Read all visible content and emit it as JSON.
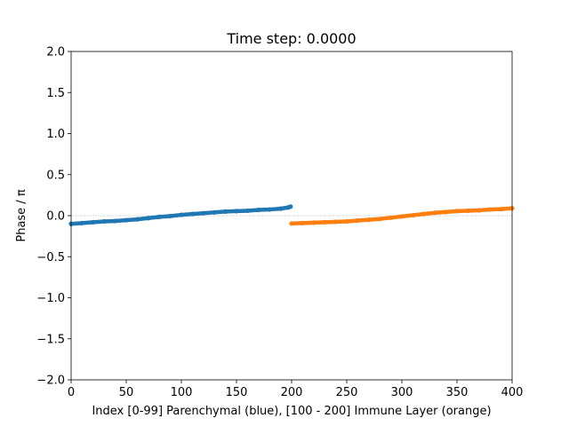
{
  "chart_data": {
    "type": "scatter",
    "title": "Time step: 0.0000",
    "xlabel": "Index [0-99] Parenchymal (blue), [100 - 200] Immune Layer (orange)",
    "ylabel": "Phase / π",
    "xlim": [
      0,
      400
    ],
    "ylim": [
      -2.0,
      2.0
    ],
    "xticks": [
      0,
      50,
      100,
      150,
      200,
      250,
      300,
      350,
      400
    ],
    "xtick_labels": [
      "0",
      "50",
      "100",
      "150",
      "200",
      "250",
      "300",
      "350",
      "400"
    ],
    "yticks": [
      2.0,
      1.5,
      1.0,
      0.5,
      0.0,
      -0.5,
      -1.0,
      -1.5,
      -2.0
    ],
    "ytick_labels": [
      "2.0",
      "1.5",
      "1.0",
      "0.5",
      "0.0",
      "−0.5",
      "−1.0",
      "−1.5",
      "−2.0"
    ],
    "reference_line": {
      "y": 0.0,
      "style": "dotted",
      "color": "#808080"
    },
    "grid": false,
    "series": [
      {
        "color": "#1f77b4",
        "points": [
          [
            0,
            -0.1
          ],
          [
            10,
            -0.09
          ],
          [
            20,
            -0.08
          ],
          [
            30,
            -0.07
          ],
          [
            40,
            -0.065
          ],
          [
            50,
            -0.055
          ],
          [
            60,
            -0.045
          ],
          [
            70,
            -0.03
          ],
          [
            80,
            -0.015
          ],
          [
            90,
            -0.005
          ],
          [
            100,
            0.01
          ],
          [
            110,
            0.02
          ],
          [
            120,
            0.03
          ],
          [
            130,
            0.04
          ],
          [
            140,
            0.05
          ],
          [
            150,
            0.055
          ],
          [
            160,
            0.06
          ],
          [
            170,
            0.07
          ],
          [
            180,
            0.075
          ],
          [
            190,
            0.085
          ],
          [
            197,
            0.1
          ],
          [
            199,
            0.11
          ]
        ]
      },
      {
        "color": "#ff7f0e",
        "points": [
          [
            200,
            -0.095
          ],
          [
            210,
            -0.09
          ],
          [
            220,
            -0.085
          ],
          [
            230,
            -0.08
          ],
          [
            240,
            -0.075
          ],
          [
            250,
            -0.07
          ],
          [
            260,
            -0.06
          ],
          [
            270,
            -0.05
          ],
          [
            280,
            -0.04
          ],
          [
            290,
            -0.025
          ],
          [
            300,
            -0.01
          ],
          [
            310,
            0.005
          ],
          [
            320,
            0.02
          ],
          [
            330,
            0.035
          ],
          [
            340,
            0.045
          ],
          [
            350,
            0.055
          ],
          [
            360,
            0.06
          ],
          [
            370,
            0.065
          ],
          [
            380,
            0.075
          ],
          [
            390,
            0.08
          ],
          [
            400,
            0.09
          ]
        ]
      }
    ]
  }
}
